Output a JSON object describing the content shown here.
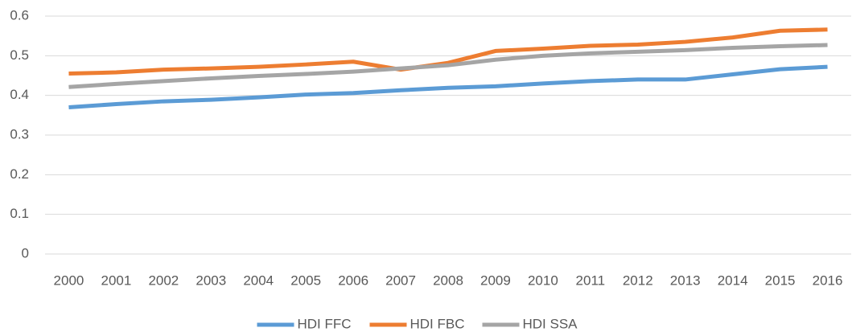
{
  "chart_data": {
    "type": "line",
    "categories": [
      "2000",
      "2001",
      "2002",
      "2003",
      "2004",
      "2005",
      "2006",
      "2007",
      "2008",
      "2009",
      "2010",
      "2011",
      "2012",
      "2013",
      "2014",
      "2015",
      "2016"
    ],
    "series": [
      {
        "name": "HDI FFC",
        "color": "#5b9bd5",
        "values": [
          0.37,
          0.378,
          0.385,
          0.389,
          0.395,
          0.402,
          0.406,
          0.413,
          0.419,
          0.423,
          0.43,
          0.436,
          0.44,
          0.44,
          0.453,
          0.466,
          0.472
        ]
      },
      {
        "name": "HDI FBC",
        "color": "#ed7d31",
        "values": [
          0.455,
          0.458,
          0.465,
          0.468,
          0.472,
          0.478,
          0.485,
          0.465,
          0.482,
          0.512,
          0.518,
          0.525,
          0.528,
          0.535,
          0.546,
          0.563,
          0.566
        ]
      },
      {
        "name": "HDI SSA",
        "color": "#a5a5a5",
        "values": [
          0.421,
          0.429,
          0.436,
          0.443,
          0.449,
          0.454,
          0.46,
          0.468,
          0.476,
          0.49,
          0.5,
          0.506,
          0.51,
          0.514,
          0.52,
          0.524,
          0.527
        ]
      }
    ],
    "ylim": [
      0,
      0.6
    ],
    "yticks": [
      0,
      0.1,
      0.2,
      0.3,
      0.4,
      0.5,
      0.6
    ],
    "grid": true,
    "legend": "bottom"
  }
}
